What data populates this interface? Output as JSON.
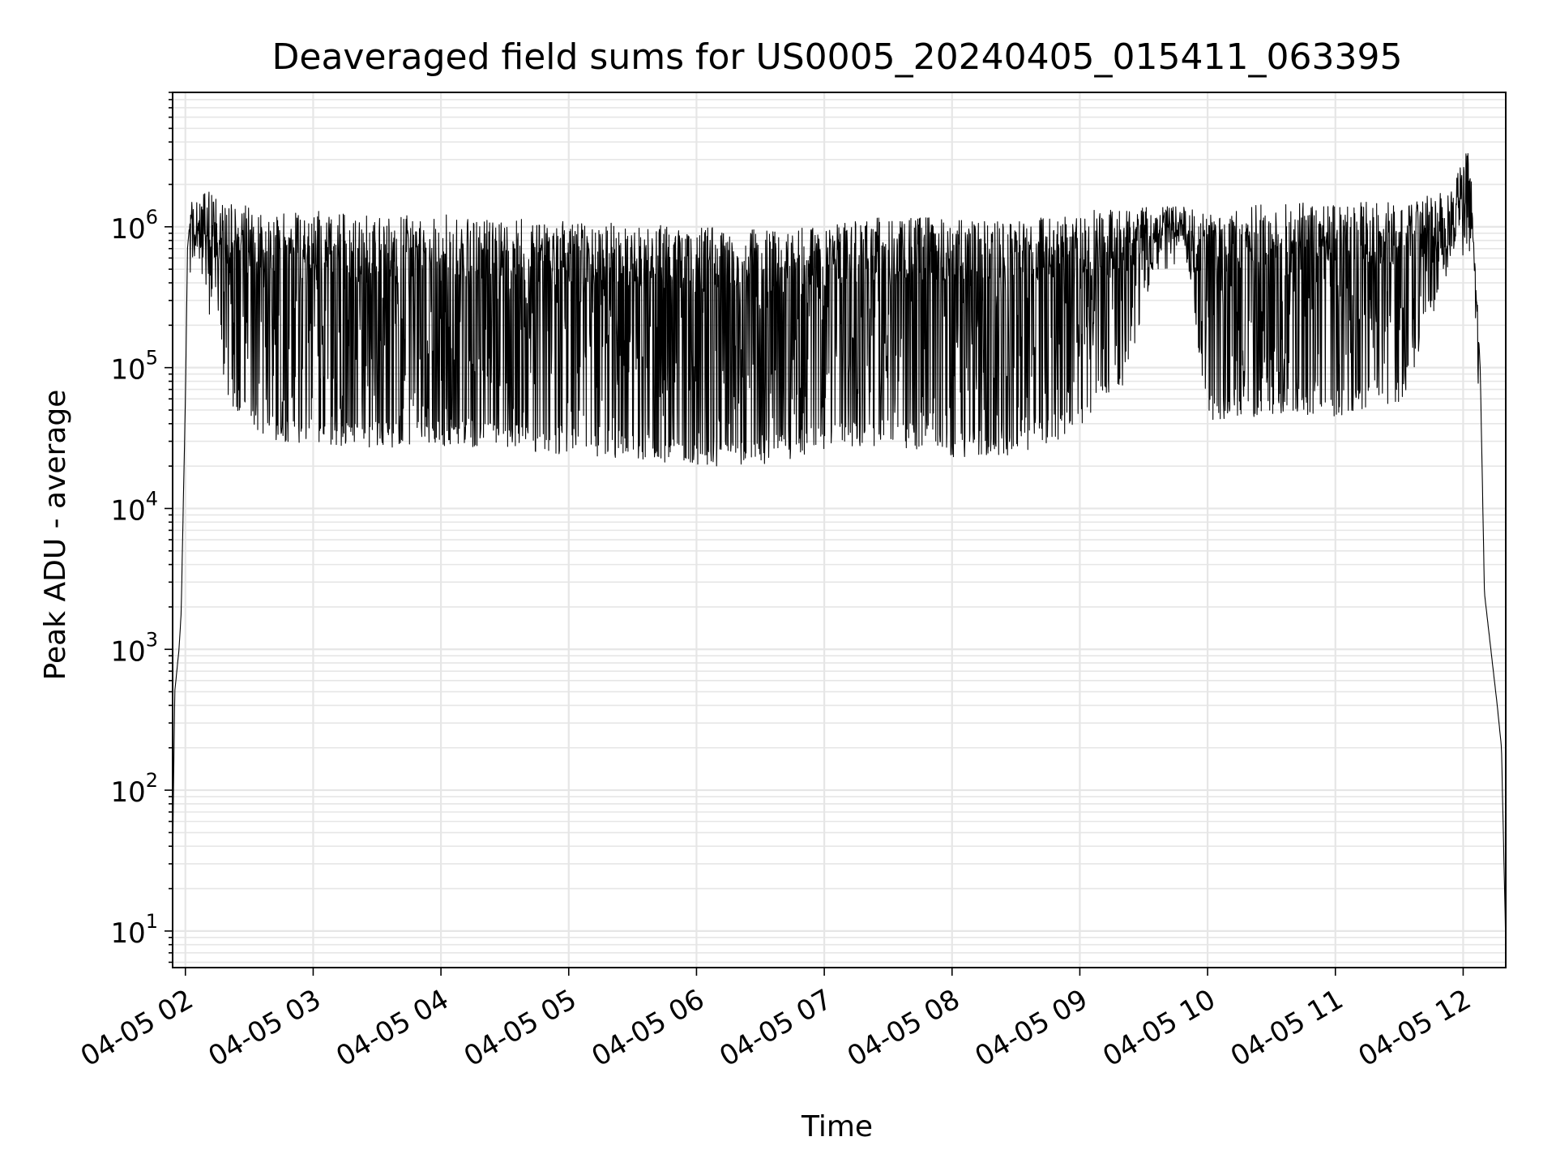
{
  "chart_data": {
    "type": "line",
    "title": "Deaveraged field sums for US0005_20240405_015411_063395",
    "xlabel": "Time",
    "ylabel": "Peak ADU - average",
    "yscale": "log",
    "ylim": [
      5.5,
      9000000
    ],
    "xlim": [
      "2024-04-05 01:54",
      "2024-04-05 12:20"
    ],
    "grid": true,
    "x_tick_labels": [
      "04-05 02",
      "04-05 03",
      "04-05 04",
      "04-05 05",
      "04-05 06",
      "04-05 07",
      "04-05 08",
      "04-05 09",
      "04-05 10",
      "04-05 11",
      "04-05 12"
    ],
    "y_tick_labels": [
      {
        "value": 10,
        "base": "10",
        "exp": "1"
      },
      {
        "value": 100,
        "base": "10",
        "exp": "2"
      },
      {
        "value": 1000,
        "base": "10",
        "exp": "3"
      },
      {
        "value": 10000,
        "base": "10",
        "exp": "4"
      },
      {
        "value": 100000,
        "base": "10",
        "exp": "5"
      },
      {
        "value": 1000000,
        "base": "10",
        "exp": "6"
      }
    ],
    "line_color": "#000000",
    "grid_color": "#e6e6e6",
    "series": [
      {
        "x": [
          "2024-04-05 01:54",
          "2024-04-05 01:55",
          "2024-04-05 01:57",
          "2024-04-05 01:58",
          "2024-04-05 02:00",
          "2024-04-05 02:01",
          "2024-04-05 02:03",
          "2024-04-05 02:05",
          "2024-04-05 02:08",
          "2024-04-05 02:12",
          "2024-04-05 02:15",
          "2024-04-05 02:20",
          "2024-04-05 02:30",
          "2024-04-05 02:45",
          "2024-04-05 03:00",
          "2024-04-05 03:30",
          "2024-04-05 04:00",
          "2024-04-05 04:30",
          "2024-04-05 05:00",
          "2024-04-05 05:30",
          "2024-04-05 06:00",
          "2024-04-05 06:30",
          "2024-04-05 07:00",
          "2024-04-05 07:30",
          "2024-04-05 08:00",
          "2024-04-05 08:30",
          "2024-04-05 09:00",
          "2024-04-05 09:20",
          "2024-04-05 09:40",
          "2024-04-05 09:50",
          "2024-04-05 10:00",
          "2024-04-05 10:30",
          "2024-04-05 11:00",
          "2024-04-05 11:30",
          "2024-04-05 11:55",
          "2024-04-05 12:03",
          "2024-04-05 12:05",
          "2024-04-05 12:08",
          "2024-04-05 12:10",
          "2024-04-05 12:13",
          "2024-04-05 12:16",
          "2024-04-05 12:18",
          "2024-04-05 12:20"
        ],
        "y_max": [
          30,
          500,
          1000,
          1800,
          60000,
          700000,
          1600000,
          1500000,
          1700000,
          1800000,
          1600000,
          1500000,
          1400000,
          1300000,
          1300000,
          1200000,
          1250000,
          1150000,
          1100000,
          1050000,
          1000000,
          950000,
          1000000,
          1200000,
          1150000,
          1100000,
          1300000,
          1350000,
          1400000,
          1400000,
          1300000,
          1500000,
          1500000,
          1500000,
          1800000,
          4500000,
          800000,
          100000,
          2500,
          1000,
          400,
          200,
          8
        ],
        "y_min": [
          30,
          500,
          1000,
          1800,
          60000,
          700000,
          1200000,
          700000,
          400000,
          200000,
          120000,
          60000,
          35000,
          30000,
          28000,
          27000,
          28000,
          26000,
          24000,
          22000,
          20000,
          20000,
          25000,
          28000,
          22000,
          24000,
          35000,
          70000,
          900000,
          700000,
          40000,
          45000,
          45000,
          50000,
          600000,
          600000,
          500000,
          100000,
          2500,
          1000,
          400,
          200,
          8
        ]
      }
    ]
  }
}
